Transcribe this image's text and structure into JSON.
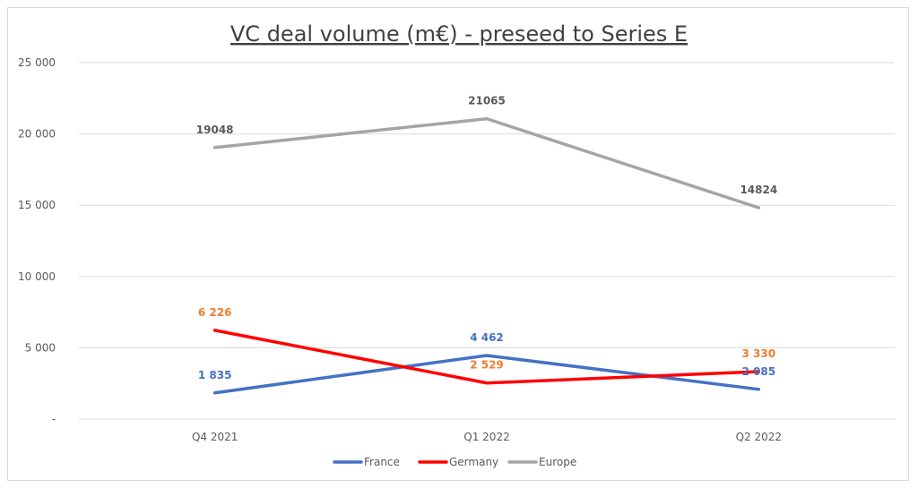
{
  "chart_data": {
    "type": "line",
    "title": "VC deal volume (m€) - preseed to Series E",
    "categories": [
      "Q4 2021",
      "Q1 2022",
      "Q2 2022"
    ],
    "ylim": [
      0,
      25000
    ],
    "yticks": [
      0,
      5000,
      10000,
      15000,
      20000,
      25000
    ],
    "ytick_labels": [
      "-",
      "5 000",
      "10 000",
      "15 000",
      "20 000",
      "25 000"
    ],
    "grid": true,
    "legend_position": "bottom",
    "series": [
      {
        "name": "France",
        "values": [
          1835,
          4462,
          2085
        ],
        "labels": [
          "1 835",
          "4 462",
          "2 085"
        ],
        "color": "#4472c4",
        "label_color": "#4472c4"
      },
      {
        "name": "Germany",
        "values": [
          6226,
          2529,
          3330
        ],
        "labels": [
          "6 226",
          "2 529",
          "3 330"
        ],
        "color": "#ff0000",
        "label_color": "#ed7d31"
      },
      {
        "name": "Europe",
        "values": [
          19048,
          21065,
          14824
        ],
        "labels": [
          "19048",
          "21065",
          "14824"
        ],
        "color": "#a5a5a5",
        "label_color": "#595959"
      }
    ]
  }
}
